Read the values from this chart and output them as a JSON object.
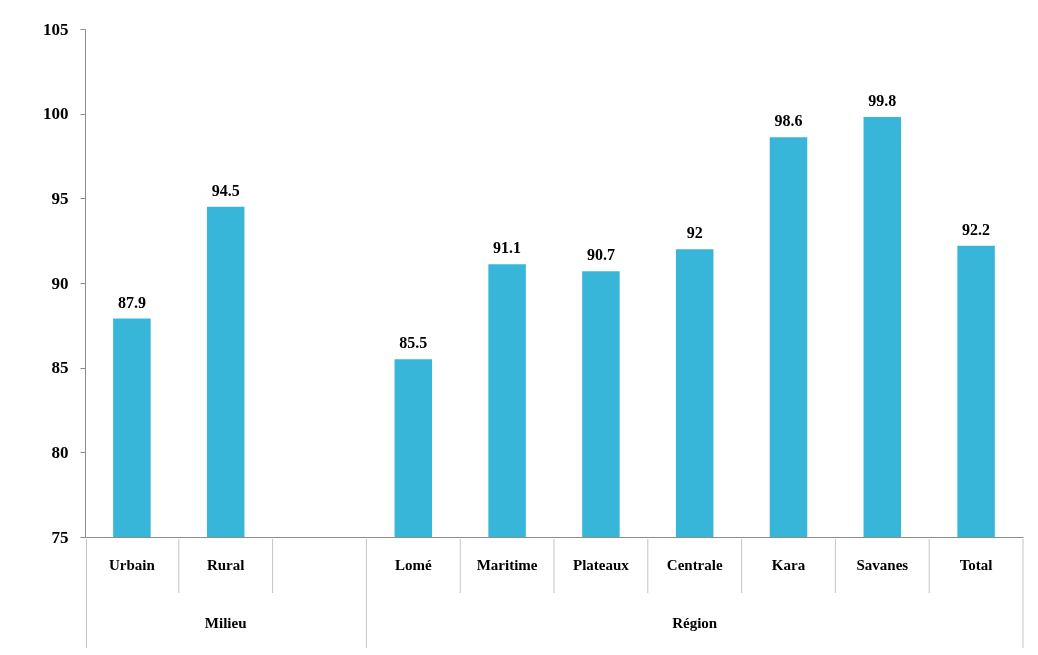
{
  "chart_data": {
    "type": "bar",
    "categories": [
      "Urbain",
      "Rural",
      null,
      "Lomé",
      "Maritime",
      "Plateaux",
      "Centrale",
      "Kara",
      "Savanes",
      "Total"
    ],
    "values": [
      87.9,
      94.5,
      null,
      85.5,
      91.1,
      90.7,
      92,
      98.6,
      99.8,
      92.2
    ],
    "color": "#38b6d9",
    "ylim": [
      75,
      105
    ],
    "yticks": [
      75,
      80,
      85,
      90,
      95,
      100,
      105
    ],
    "grid": false,
    "data_labels": true,
    "annotations": [
      "Milieu",
      "Région"
    ]
  }
}
